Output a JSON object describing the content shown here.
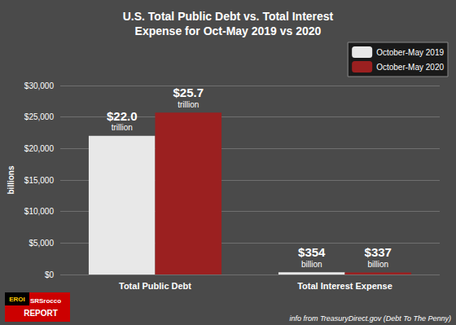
{
  "chart_data": {
    "type": "bar",
    "title": "U.S. Total Public Debt vs. Total Interest\nExpense for Oct-May 2019 vs 2020",
    "categories": [
      "Total Public Debt",
      "Total Interest Expense"
    ],
    "series": [
      {
        "name": "October-May 2019",
        "color": "#e8e8e8",
        "values": [
          22000,
          354
        ],
        "value_labels": [
          "$22.0\ntrillion",
          "$354\nbillion"
        ]
      },
      {
        "name": "October-May 2020",
        "color": "#9b2020",
        "values": [
          25700,
          337
        ],
        "value_labels": [
          "$25.7\ntrillion",
          "$337\nbillion"
        ]
      }
    ],
    "ylabel": "billions",
    "ylim": [
      0,
      30000
    ],
    "yticks": [
      {
        "value": 0,
        "label": "$0"
      },
      {
        "value": 5000,
        "label": "$5,000"
      },
      {
        "value": 10000,
        "label": "$10,000"
      },
      {
        "value": 15000,
        "label": "$15,000"
      },
      {
        "value": 20000,
        "label": "$20,000"
      },
      {
        "value": 25000,
        "label": "$25,000"
      },
      {
        "value": 30000,
        "label": "$30,000"
      }
    ],
    "grid": true,
    "legend": "upper right",
    "data_labels": true,
    "annotations": [
      "info from TreasuryDirect.gov (Debt To The Penny)",
      "EROI",
      "SRSrocco",
      "REPORT"
    ]
  }
}
